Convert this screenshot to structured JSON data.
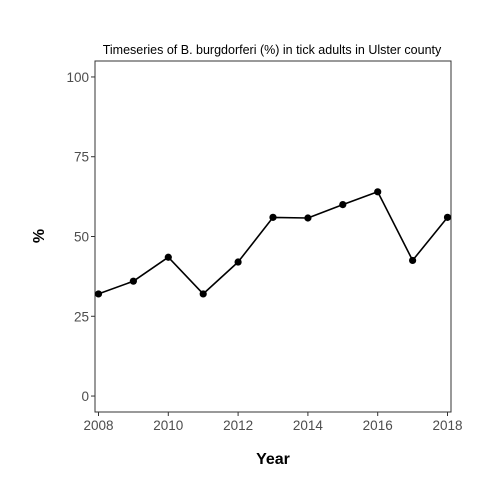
{
  "chart_data": {
    "type": "line",
    "title": "Timeseries of B. burgdorferi (%) in tick adults in Ulster county",
    "xlabel": "Year",
    "ylabel": "%",
    "x": [
      2008,
      2009,
      2010,
      2011,
      2012,
      2013,
      2014,
      2015,
      2016,
      2017,
      2018
    ],
    "values": [
      32,
      36,
      43.5,
      32,
      42,
      56,
      55.8,
      60,
      64,
      42.5,
      56
    ],
    "xlim": [
      2007.9,
      2018.1
    ],
    "ylim": [
      -5,
      105
    ],
    "xticks": [
      2008,
      2010,
      2012,
      2014,
      2016,
      2018
    ],
    "yticks": [
      0,
      25,
      50,
      75,
      100
    ],
    "xtick_labels": [
      "2008",
      "2010",
      "2012",
      "2014",
      "2016",
      "2018"
    ],
    "ytick_labels": [
      "0",
      "25",
      "50",
      "75",
      "100"
    ],
    "grid": false,
    "line_color": "#000000",
    "point_color": "#000000"
  }
}
